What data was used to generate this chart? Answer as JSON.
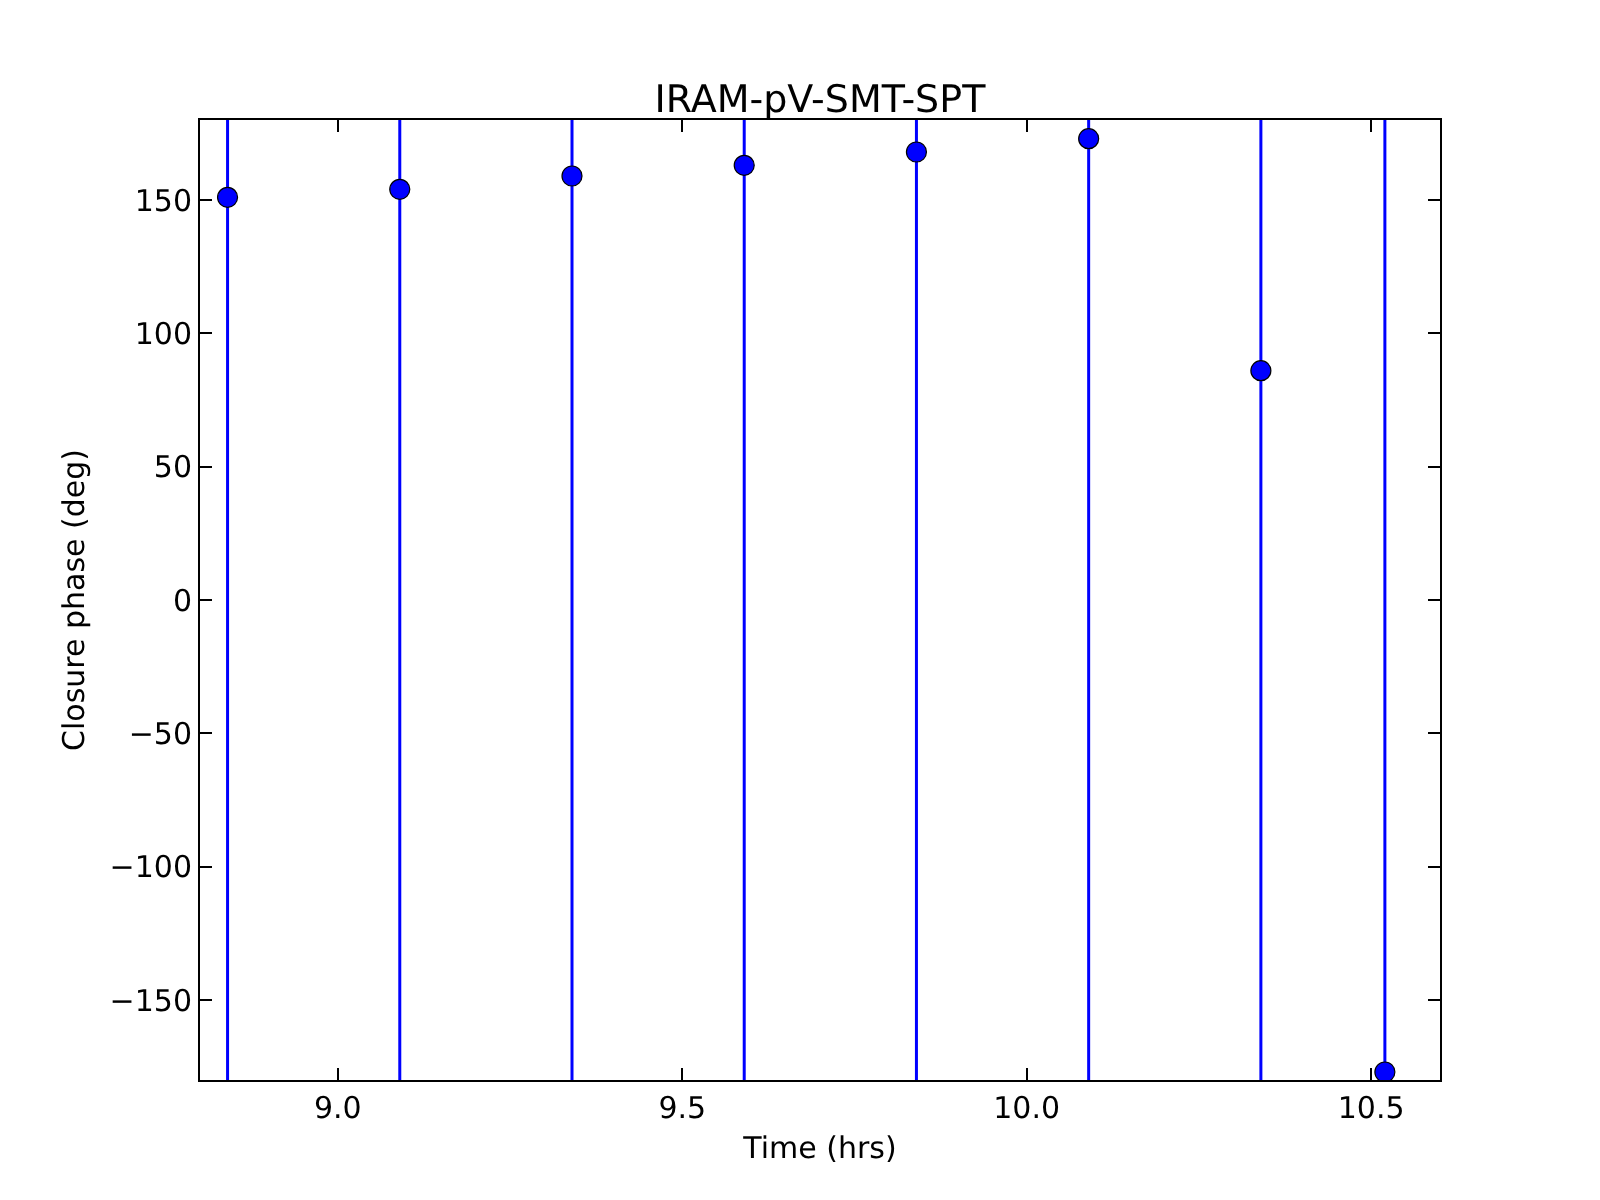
{
  "chart_data": {
    "type": "scatter",
    "title": "IRAM-pV-SMT-SPT",
    "xlabel": "Time (hrs)",
    "ylabel": "Closure phase (deg)",
    "x": [
      8.84,
      9.09,
      9.34,
      9.59,
      9.84,
      10.09,
      10.34,
      10.52
    ],
    "values": [
      151,
      154,
      159,
      163,
      168,
      173,
      86,
      -177
    ],
    "errors": [
      [
        -180,
        180
      ],
      [
        -180,
        180
      ],
      [
        -180,
        180
      ],
      [
        -180,
        180
      ],
      [
        -180,
        180
      ],
      [
        -180,
        180
      ],
      [
        -180,
        180
      ],
      [
        -180,
        180
      ]
    ],
    "color": "#0000ff",
    "marker": "circle",
    "xlim": [
      8.8,
      10.6
    ],
    "ylim": [
      -180,
      180
    ],
    "xticks": [
      {
        "value": 9.0,
        "label": "9.0"
      },
      {
        "value": 9.5,
        "label": "9.5"
      },
      {
        "value": 10.0,
        "label": "10.0"
      },
      {
        "value": 10.5,
        "label": "10.5"
      }
    ],
    "yticks": [
      {
        "value": -150,
        "label": "−150"
      },
      {
        "value": -100,
        "label": "−100"
      },
      {
        "value": -50,
        "label": "−50"
      },
      0,
      50,
      100,
      150
    ]
  }
}
